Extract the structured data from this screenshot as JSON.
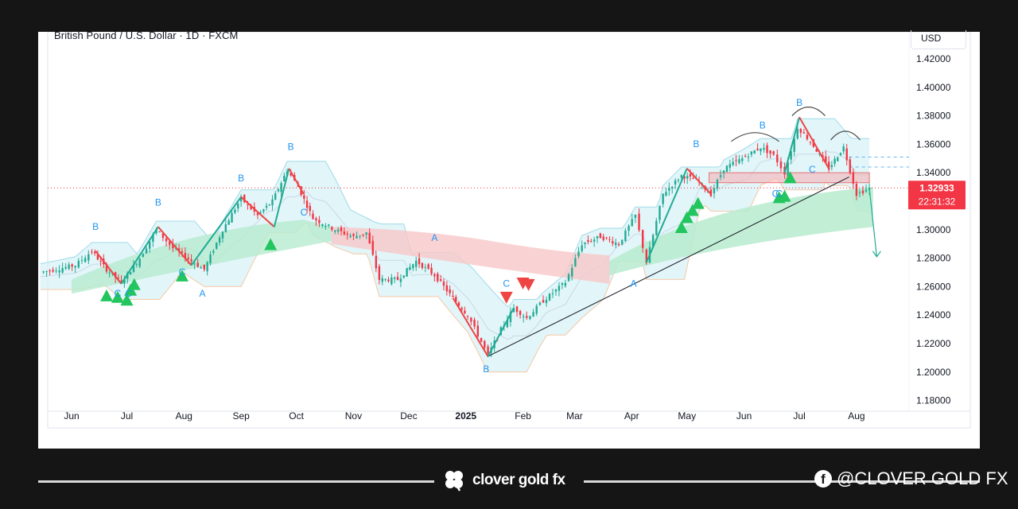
{
  "header": {
    "symbol_line": "British Pound / U.S. Dollar · 1D · FXCM",
    "currency": "USD"
  },
  "price_tag": {
    "price": "1.32933",
    "countdown": "22:31:32",
    "color": "#f23645"
  },
  "footer": {
    "brand": "clover gold fx",
    "social": "@CLOVER GOLD FX"
  },
  "colors": {
    "up": "#22ab94",
    "down": "#f23645",
    "signal_up": "#22c55e",
    "signal_down": "#ef4444",
    "wave_label": "#2196f3"
  },
  "chart_data": {
    "type": "candlestick",
    "title": "British Pound / U.S. Dollar · 1D · FXCM",
    "ylabel": "USD",
    "ylim": [
      1.18,
      1.43
    ],
    "y_ticks": [
      "1.42000",
      "1.40000",
      "1.38000",
      "1.36000",
      "1.34000",
      "1.32000",
      "1.30000",
      "1.28000",
      "1.26000",
      "1.24000",
      "1.22000",
      "1.20000",
      "1.18000"
    ],
    "x_ticks": [
      {
        "label": "Jun",
        "date": "2024-06-01"
      },
      {
        "label": "Jul",
        "date": "2024-07-01"
      },
      {
        "label": "Aug",
        "date": "2024-08-01"
      },
      {
        "label": "Sep",
        "date": "2024-09-01"
      },
      {
        "label": "Oct",
        "date": "2024-10-01"
      },
      {
        "label": "Nov",
        "date": "2024-11-01"
      },
      {
        "label": "Dec",
        "date": "2024-12-01"
      },
      {
        "label": "2025",
        "date": "2025-01-01"
      },
      {
        "label": "Feb",
        "date": "2025-02-01"
      },
      {
        "label": "Mar",
        "date": "2025-03-01"
      },
      {
        "label": "Apr",
        "date": "2025-04-01"
      },
      {
        "label": "May",
        "date": "2025-05-01"
      },
      {
        "label": "Jun",
        "date": "2025-06-01"
      },
      {
        "label": "Jul",
        "date": "2025-07-01"
      },
      {
        "label": "Aug",
        "date": "2025-08-01"
      }
    ],
    "price_path": [
      [
        "2024-05-15",
        1.27
      ],
      [
        "2024-06-03",
        1.275
      ],
      [
        "2024-06-12",
        1.285
      ],
      [
        "2024-06-20",
        1.272
      ],
      [
        "2024-06-28",
        1.263
      ],
      [
        "2024-07-08",
        1.28
      ],
      [
        "2024-07-17",
        1.3
      ],
      [
        "2024-07-26",
        1.287
      ],
      [
        "2024-08-05",
        1.278
      ],
      [
        "2024-08-12",
        1.272
      ],
      [
        "2024-08-22",
        1.3
      ],
      [
        "2024-09-01",
        1.322
      ],
      [
        "2024-09-10",
        1.31
      ],
      [
        "2024-09-18",
        1.32
      ],
      [
        "2024-09-26",
        1.342
      ],
      [
        "2024-10-02",
        1.33
      ],
      [
        "2024-10-10",
        1.308
      ],
      [
        "2024-10-22",
        1.3
      ],
      [
        "2024-11-01",
        1.295
      ],
      [
        "2024-11-08",
        1.298
      ],
      [
        "2024-11-15",
        1.265
      ],
      [
        "2024-11-25",
        1.265
      ],
      [
        "2024-12-05",
        1.278
      ],
      [
        "2024-12-15",
        1.268
      ],
      [
        "2024-12-25",
        1.252
      ],
      [
        "2025-01-02",
        1.24
      ],
      [
        "2025-01-13",
        1.212
      ],
      [
        "2025-01-20",
        1.23
      ],
      [
        "2025-01-27",
        1.245
      ],
      [
        "2025-02-03",
        1.238
      ],
      [
        "2025-02-12",
        1.25
      ],
      [
        "2025-02-24",
        1.263
      ],
      [
        "2025-03-05",
        1.29
      ],
      [
        "2025-03-15",
        1.295
      ],
      [
        "2025-03-25",
        1.29
      ],
      [
        "2025-04-03",
        1.31
      ],
      [
        "2025-04-09",
        1.277
      ],
      [
        "2025-04-18",
        1.325
      ],
      [
        "2025-04-28",
        1.338
      ],
      [
        "2025-05-06",
        1.335
      ],
      [
        "2025-05-14",
        1.325
      ],
      [
        "2025-05-21",
        1.343
      ],
      [
        "2025-05-31",
        1.35
      ],
      [
        "2025-06-10",
        1.358
      ],
      [
        "2025-06-17",
        1.352
      ],
      [
        "2025-06-23",
        1.34
      ],
      [
        "2025-06-30",
        1.372
      ],
      [
        "2025-07-07",
        1.362
      ],
      [
        "2025-07-17",
        1.343
      ],
      [
        "2025-07-25",
        1.358
      ],
      [
        "2025-08-01",
        1.325
      ],
      [
        "2025-08-08",
        1.329
      ]
    ],
    "last_price": 1.32933,
    "wave_labels": [
      {
        "text": "B",
        "date": "2024-06-14",
        "price": 1.3
      },
      {
        "text": "C",
        "date": "2024-06-26",
        "price": 1.253
      },
      {
        "text": "C",
        "date": "2024-07-02",
        "price": 1.253
      },
      {
        "text": "B",
        "date": "2024-07-18",
        "price": 1.317
      },
      {
        "text": "C",
        "date": "2024-07-31",
        "price": 1.268
      },
      {
        "text": "A",
        "date": "2024-08-11",
        "price": 1.253
      },
      {
        "text": "B",
        "date": "2024-09-01",
        "price": 1.334
      },
      {
        "text": "B",
        "date": "2024-09-28",
        "price": 1.356
      },
      {
        "text": "C",
        "date": "2024-10-05",
        "price": 1.31
      },
      {
        "text": "A",
        "date": "2024-12-15",
        "price": 1.292
      },
      {
        "text": "B",
        "date": "2025-01-12",
        "price": 1.2
      },
      {
        "text": "C",
        "date": "2025-01-23",
        "price": 1.26
      },
      {
        "text": "A",
        "date": "2025-04-02",
        "price": 1.26
      },
      {
        "text": "B",
        "date": "2025-05-06",
        "price": 1.358
      },
      {
        "text": "B",
        "date": "2025-06-11",
        "price": 1.371
      },
      {
        "text": "C",
        "date": "2025-06-18",
        "price": 1.323
      },
      {
        "text": "C",
        "date": "2025-06-20",
        "price": 1.323
      },
      {
        "text": "B",
        "date": "2025-07-01",
        "price": 1.387
      },
      {
        "text": "C",
        "date": "2025-07-08",
        "price": 1.34
      }
    ],
    "signals_up": [
      [
        "2024-06-20",
        1.253
      ],
      [
        "2024-06-26",
        1.252
      ],
      [
        "2024-07-01",
        1.25
      ],
      [
        "2024-07-03",
        1.257
      ],
      [
        "2024-07-05",
        1.261
      ],
      [
        "2024-07-31",
        1.267
      ],
      [
        "2024-09-17",
        1.289
      ],
      [
        "2025-04-28",
        1.301
      ],
      [
        "2025-05-01",
        1.308
      ],
      [
        "2025-05-04",
        1.313
      ],
      [
        "2025-05-07",
        1.318
      ],
      [
        "2025-06-20",
        1.322
      ],
      [
        "2025-06-23",
        1.323
      ],
      [
        "2025-06-26",
        1.336
      ]
    ],
    "signals_down": [
      [
        "2025-01-23",
        1.253
      ],
      [
        "2025-02-01",
        1.263
      ],
      [
        "2025-02-04",
        1.262
      ]
    ],
    "trendline": [
      [
        "2025-01-13",
        1.211
      ],
      [
        "2025-07-28",
        1.337
      ]
    ],
    "resistance_zone": {
      "from": "2025-05-13",
      "to": "2025-08-08",
      "top": 1.34,
      "bottom": 1.333
    },
    "forecast_arrow": [
      [
        "2025-08-08",
        1.329
      ],
      [
        "2025-08-12",
        1.281
      ]
    ]
  }
}
